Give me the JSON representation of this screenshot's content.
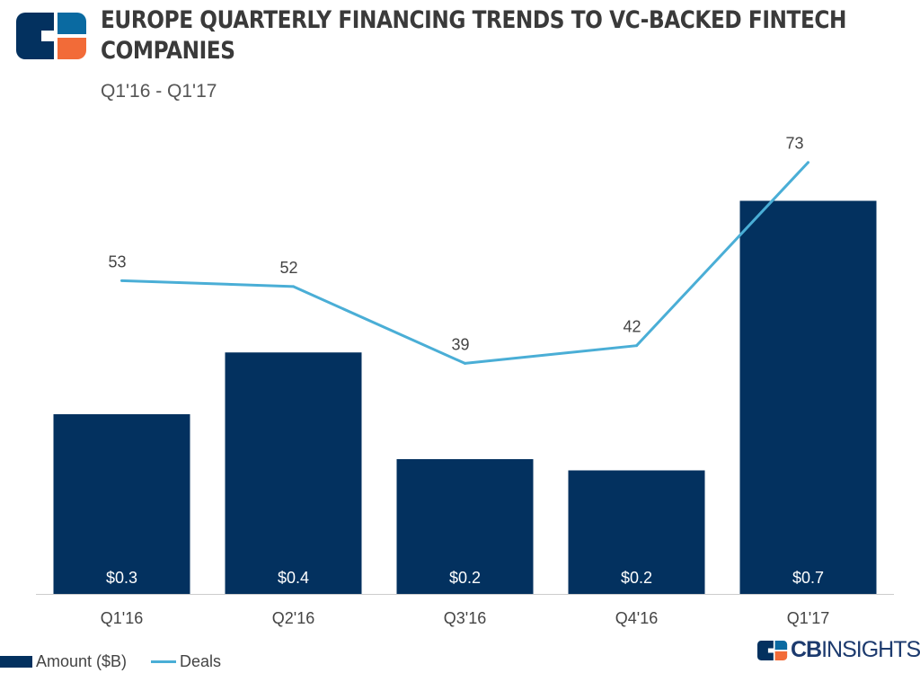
{
  "header": {
    "title": "EUROPE QUARTERLY FINANCING TRENDS TO VC-BACKED FINTECH COMPANIES",
    "subtitle": "Q1'16 - Q1'17"
  },
  "brand": {
    "name_bold": "CB",
    "name_light": "INSIGHTS"
  },
  "colors": {
    "bar": "#03315f",
    "line": "#4aaed6",
    "logo_dark": "#03315f",
    "logo_blue": "#0a6aa1",
    "logo_orange": "#f26b38"
  },
  "chart_data": {
    "type": "bar+line",
    "categories": [
      "Q1'16",
      "Q2'16",
      "Q3'16",
      "Q4'16",
      "Q1'17"
    ],
    "series": [
      {
        "name": "Amount ($B)",
        "type": "bar",
        "values": [
          0.32,
          0.43,
          0.24,
          0.22,
          0.7
        ],
        "labels": [
          "$0.3",
          "$0.4",
          "$0.2",
          "$0.2",
          "$0.7"
        ],
        "ylim": [
          0,
          0.8
        ]
      },
      {
        "name": "Deals",
        "type": "line",
        "values": [
          53,
          52,
          39,
          42,
          73
        ],
        "labels": [
          "53",
          "52",
          "39",
          "42",
          "73"
        ],
        "ylim": [
          0,
          76
        ]
      }
    ],
    "grid": false,
    "legend": "bottom-left"
  }
}
